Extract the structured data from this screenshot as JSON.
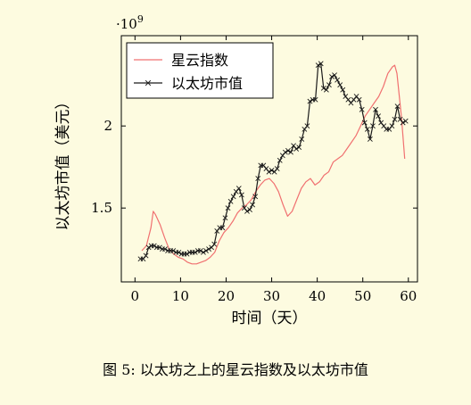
{
  "chart_data": {
    "type": "line",
    "title": "",
    "xlabel": "时间（天）",
    "ylabel": "以太坊市值（美元）",
    "y_multiplier": "·10",
    "y_multiplier_exp": "9",
    "xlim": [
      -3,
      62
    ],
    "ylim": [
      1.05,
      2.55
    ],
    "x_ticks": [
      0,
      10,
      20,
      30,
      40,
      50,
      60
    ],
    "x_tick_labels": [
      "0",
      "10",
      "20",
      "30",
      "40",
      "50",
      "60"
    ],
    "y_ticks": [
      1.5,
      2.0
    ],
    "y_tick_labels": [
      "1.5",
      "2"
    ],
    "grid": false,
    "legend_position": "top-left",
    "series": [
      {
        "name": "星云指数",
        "color": "#f07070",
        "marker": "none",
        "x": [
          1.5,
          2.5,
          3.5,
          4.0,
          4.5,
          5.5,
          6.5,
          7.5,
          8.5,
          9.5,
          10.5,
          11.5,
          12.5,
          13.5,
          14.5,
          15.5,
          16.5,
          17.5,
          18.5,
          19.5,
          20.5,
          21.5,
          22.5,
          23.5,
          24.5,
          25.5,
          26.5,
          27.5,
          28.5,
          29.5,
          30.5,
          31.5,
          32.5,
          33.5,
          34.5,
          35.5,
          36.5,
          37.5,
          38.5,
          39.5,
          40.5,
          41.5,
          42.5,
          43.5,
          44.5,
          45.5,
          46.5,
          47.5,
          48.5,
          49.5,
          50.5,
          51.5,
          52.5,
          53.5,
          54.5,
          55.5,
          56.5,
          57.0,
          57.5,
          58.5,
          59.2
        ],
        "values": [
          1.24,
          1.27,
          1.38,
          1.48,
          1.46,
          1.4,
          1.32,
          1.25,
          1.22,
          1.2,
          1.19,
          1.17,
          1.16,
          1.16,
          1.17,
          1.18,
          1.2,
          1.23,
          1.3,
          1.35,
          1.38,
          1.42,
          1.47,
          1.5,
          1.52,
          1.55,
          1.6,
          1.64,
          1.67,
          1.68,
          1.65,
          1.6,
          1.52,
          1.45,
          1.48,
          1.55,
          1.62,
          1.66,
          1.68,
          1.64,
          1.66,
          1.7,
          1.72,
          1.78,
          1.8,
          1.82,
          1.86,
          1.9,
          1.94,
          2.0,
          2.06,
          2.1,
          2.14,
          2.18,
          2.24,
          2.32,
          2.36,
          2.37,
          2.32,
          2.05,
          1.8
        ]
      },
      {
        "name": "以太坊市值",
        "color": "#1a1a1a",
        "marker": "x",
        "x": [
          1.2,
          1.8,
          2.4,
          3.0,
          3.6,
          4.2,
          4.8,
          5.4,
          6.0,
          6.6,
          7.2,
          7.8,
          8.4,
          9.0,
          9.6,
          10.2,
          10.8,
          11.4,
          12.0,
          12.6,
          13.2,
          13.8,
          14.4,
          15.0,
          15.6,
          16.2,
          16.8,
          17.4,
          18.0,
          18.6,
          19.2,
          19.8,
          20.4,
          21.0,
          21.6,
          22.2,
          22.8,
          23.4,
          24.0,
          24.6,
          25.2,
          25.8,
          26.4,
          27.0,
          27.6,
          28.2,
          28.8,
          29.4,
          30.0,
          30.6,
          31.2,
          31.8,
          32.4,
          33.0,
          33.6,
          34.2,
          34.8,
          35.4,
          36.0,
          36.6,
          37.2,
          37.8,
          38.4,
          39.0,
          39.6,
          40.2,
          40.8,
          41.4,
          42.0,
          42.6,
          43.2,
          43.8,
          44.4,
          45.0,
          45.6,
          46.2,
          46.8,
          47.4,
          48.0,
          48.6,
          49.2,
          49.8,
          50.4,
          51.0,
          51.6,
          52.2,
          52.8,
          53.4,
          54.0,
          54.6,
          55.2,
          55.8,
          56.4,
          57.0,
          57.6,
          58.2,
          58.8,
          59.4
        ],
        "values": [
          1.19,
          1.19,
          1.21,
          1.26,
          1.27,
          1.27,
          1.26,
          1.26,
          1.25,
          1.25,
          1.24,
          1.24,
          1.24,
          1.23,
          1.23,
          1.22,
          1.22,
          1.22,
          1.23,
          1.23,
          1.23,
          1.24,
          1.24,
          1.23,
          1.24,
          1.25,
          1.26,
          1.28,
          1.36,
          1.38,
          1.38,
          1.44,
          1.5,
          1.54,
          1.57,
          1.6,
          1.62,
          1.58,
          1.5,
          1.48,
          1.49,
          1.52,
          1.57,
          1.68,
          1.76,
          1.76,
          1.74,
          1.72,
          1.73,
          1.72,
          1.74,
          1.79,
          1.82,
          1.84,
          1.85,
          1.84,
          1.88,
          1.86,
          1.87,
          1.92,
          1.98,
          2.0,
          2.15,
          2.16,
          2.16,
          2.37,
          2.38,
          2.23,
          2.22,
          2.25,
          2.3,
          2.31,
          2.28,
          2.25,
          2.22,
          2.18,
          2.16,
          2.14,
          2.16,
          2.18,
          2.16,
          2.1,
          2.02,
          1.98,
          1.92,
          2.0,
          2.1,
          2.06,
          2.02,
          2.0,
          1.98,
          1.98,
          2.0,
          2.04,
          2.12,
          2.04,
          2.02,
          2.03
        ]
      }
    ]
  },
  "caption": "图 5: 以太坊之上的星云指数及以太坊市值"
}
